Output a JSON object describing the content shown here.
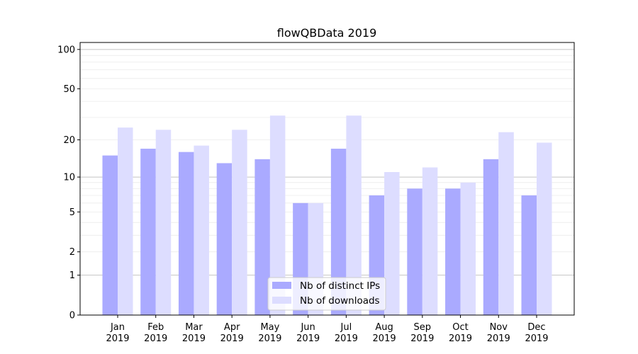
{
  "chart_data": {
    "type": "bar",
    "title": "flowQBData 2019",
    "xlabel": "",
    "ylabel": "",
    "y_scale": "log(1+y)",
    "ylim": [
      0,
      113
    ],
    "y_ticks": [
      0,
      1,
      2,
      5,
      10,
      20,
      50,
      100
    ],
    "grid": "horizontal major and minor",
    "legend_position": "bottom-center",
    "categories": [
      "Jan\n2019",
      "Feb\n2019",
      "Mar\n2019",
      "Apr\n2019",
      "May\n2019",
      "Jun\n2019",
      "Jul\n2019",
      "Aug\n2019",
      "Sep\n2019",
      "Oct\n2019",
      "Nov\n2019",
      "Dec\n2019"
    ],
    "series": [
      {
        "name": "Nb of distinct IPs",
        "color": "#aaaaff",
        "values": [
          15,
          17,
          16,
          13,
          14,
          6,
          17,
          7,
          8,
          8,
          14,
          7
        ]
      },
      {
        "name": "Nb of downloads",
        "color": "#ddddff",
        "values": [
          25,
          24,
          18,
          24,
          31,
          6,
          31,
          11,
          12,
          9,
          23,
          19
        ]
      }
    ]
  }
}
